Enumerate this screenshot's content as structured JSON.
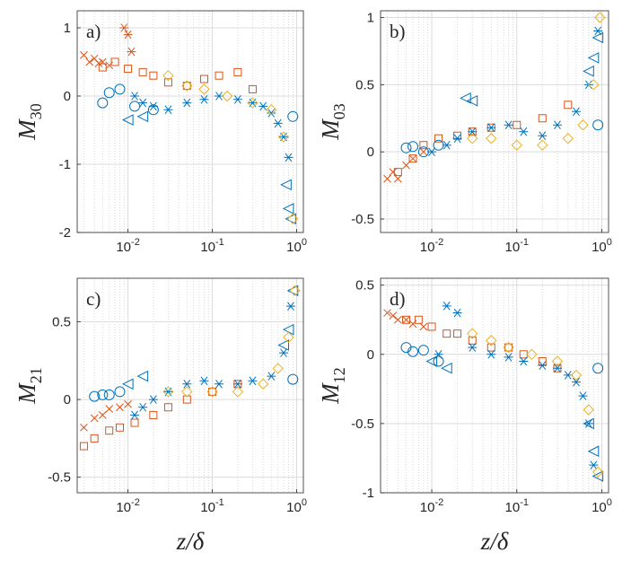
{
  "figure": {
    "xlabel": "z/δ",
    "colors": {
      "blue": "#0072BD",
      "orange": "#D95319",
      "yellow": "#EDB120"
    },
    "x_tick_labels": [
      "10-2",
      "10-1",
      "100"
    ]
  },
  "chart_data": [
    {
      "type": "scatter",
      "panel": "a)",
      "ylabel": "M30",
      "xscale": "log",
      "xlim": [
        0.0025,
        1.2
      ],
      "ylim": [
        -2,
        1.25
      ],
      "yticks": [
        -2,
        -1,
        0,
        1
      ],
      "ytick_labels": [
        "-2",
        "-1",
        "0",
        "1"
      ],
      "grid": "on",
      "series": [
        {
          "name": "orange-cross",
          "marker": "x",
          "color": "#D95319",
          "x": [
            0.003,
            0.0035,
            0.004,
            0.0045,
            0.005,
            0.006
          ],
          "y": [
            0.6,
            0.5,
            0.55,
            0.48,
            0.5,
            0.45
          ]
        },
        {
          "name": "orange-square",
          "marker": "square",
          "color": "#D95319",
          "x": [
            0.005,
            0.007,
            0.01,
            0.015,
            0.02,
            0.03,
            0.05,
            0.08,
            0.12,
            0.2,
            0.3
          ],
          "y": [
            0.42,
            0.5,
            0.4,
            0.35,
            0.3,
            0.2,
            0.15,
            0.25,
            0.3,
            0.35,
            0.1
          ]
        },
        {
          "name": "orange-star",
          "marker": "asterisk",
          "color": "#D95319",
          "x": [
            0.009,
            0.01,
            0.011
          ],
          "y": [
            1.0,
            0.9,
            0.65
          ]
        },
        {
          "name": "blue-circle",
          "marker": "circle",
          "color": "#0072BD",
          "x": [
            0.005,
            0.006,
            0.008,
            0.012,
            0.02,
            0.9
          ],
          "y": [
            -0.1,
            0.05,
            0.1,
            -0.15,
            -0.2,
            -0.3
          ]
        },
        {
          "name": "blue-star",
          "marker": "asterisk",
          "color": "#0072BD",
          "x": [
            0.012,
            0.015,
            0.02,
            0.03,
            0.05,
            0.08,
            0.12,
            0.2,
            0.3,
            0.4,
            0.5,
            0.6,
            0.7,
            0.8
          ],
          "y": [
            0.0,
            -0.1,
            -0.15,
            -0.2,
            -0.1,
            -0.05,
            0.0,
            -0.05,
            -0.1,
            -0.15,
            -0.25,
            -0.4,
            -0.6,
            -0.9
          ]
        },
        {
          "name": "blue-left",
          "marker": "triangle-left",
          "color": "#0072BD",
          "x": [
            0.01,
            0.015,
            0.75,
            0.8,
            0.85
          ],
          "y": [
            -0.35,
            -0.3,
            -1.3,
            -1.65,
            -1.8
          ]
        },
        {
          "name": "yellow-diamond",
          "marker": "diamond",
          "color": "#EDB120",
          "x": [
            0.03,
            0.05,
            0.08,
            0.15,
            0.3,
            0.5,
            0.7,
            0.9
          ],
          "y": [
            0.3,
            0.15,
            0.1,
            0.0,
            -0.1,
            -0.2,
            -0.6,
            -1.8
          ]
        }
      ]
    },
    {
      "type": "scatter",
      "panel": "b)",
      "ylabel": "M03",
      "xscale": "log",
      "xlim": [
        0.0025,
        1.2
      ],
      "ylim": [
        -0.6,
        1.05
      ],
      "yticks": [
        -0.5,
        0,
        0.5,
        1
      ],
      "ytick_labels": [
        "-0.5",
        "0",
        "0.5",
        "1"
      ],
      "grid": "on",
      "series": [
        {
          "name": "orange-cross",
          "marker": "x",
          "color": "#D95319",
          "x": [
            0.003,
            0.0035,
            0.004,
            0.005,
            0.006,
            0.008
          ],
          "y": [
            -0.2,
            -0.15,
            -0.2,
            -0.1,
            -0.05,
            0.0
          ]
        },
        {
          "name": "orange-square",
          "marker": "square",
          "color": "#D95319",
          "x": [
            0.004,
            0.006,
            0.008,
            0.012,
            0.02,
            0.03,
            0.05,
            0.1,
            0.2,
            0.4
          ],
          "y": [
            -0.15,
            -0.05,
            0.05,
            0.1,
            0.12,
            0.15,
            0.18,
            0.2,
            0.25,
            0.35
          ]
        },
        {
          "name": "blue-circle",
          "marker": "circle",
          "color": "#0072BD",
          "x": [
            0.005,
            0.006,
            0.008,
            0.012,
            0.9
          ],
          "y": [
            0.03,
            0.04,
            0.0,
            0.05,
            0.2
          ]
        },
        {
          "name": "blue-star",
          "marker": "asterisk",
          "color": "#0072BD",
          "x": [
            0.01,
            0.015,
            0.02,
            0.03,
            0.05,
            0.08,
            0.12,
            0.2,
            0.3,
            0.5,
            0.7,
            0.9
          ],
          "y": [
            0.0,
            0.05,
            0.1,
            0.15,
            0.18,
            0.2,
            0.15,
            0.12,
            0.2,
            0.3,
            0.5,
            0.9
          ]
        },
        {
          "name": "blue-left",
          "marker": "triangle-left",
          "color": "#0072BD",
          "x": [
            0.025,
            0.03,
            0.7,
            0.8,
            0.9
          ],
          "y": [
            0.4,
            0.38,
            0.6,
            0.7,
            0.85
          ]
        },
        {
          "name": "yellow-diamond",
          "marker": "diamond",
          "color": "#EDB120",
          "x": [
            0.03,
            0.05,
            0.1,
            0.2,
            0.4,
            0.6,
            0.8,
            0.95
          ],
          "y": [
            0.1,
            0.1,
            0.05,
            0.05,
            0.1,
            0.2,
            0.5,
            1.0
          ]
        }
      ]
    },
    {
      "type": "scatter",
      "panel": "c)",
      "ylabel": "M21",
      "xscale": "log",
      "xlim": [
        0.0025,
        1.2
      ],
      "ylim": [
        -0.6,
        0.78
      ],
      "yticks": [
        -0.5,
        0,
        0.5
      ],
      "ytick_labels": [
        "-0.5",
        "0",
        "0.5"
      ],
      "grid": "on",
      "series": [
        {
          "name": "orange-cross",
          "marker": "x",
          "color": "#D95319",
          "x": [
            0.003,
            0.004,
            0.005,
            0.006,
            0.008,
            0.01
          ],
          "y": [
            -0.18,
            -0.12,
            -0.1,
            -0.06,
            -0.05,
            -0.03
          ]
        },
        {
          "name": "orange-square",
          "marker": "square",
          "color": "#D95319",
          "x": [
            0.003,
            0.004,
            0.006,
            0.008,
            0.012,
            0.02,
            0.03,
            0.05,
            0.1,
            0.2
          ],
          "y": [
            -0.3,
            -0.25,
            -0.2,
            -0.18,
            -0.15,
            -0.1,
            -0.05,
            0.0,
            0.05,
            0.1
          ]
        },
        {
          "name": "blue-circle",
          "marker": "circle",
          "color": "#0072BD",
          "x": [
            0.004,
            0.005,
            0.006,
            0.008,
            0.9
          ],
          "y": [
            0.02,
            0.03,
            0.03,
            0.05,
            0.13
          ]
        },
        {
          "name": "blue-star",
          "marker": "asterisk",
          "color": "#0072BD",
          "x": [
            0.012,
            0.015,
            0.02,
            0.03,
            0.05,
            0.08,
            0.12,
            0.2,
            0.3,
            0.5,
            0.7,
            0.85
          ],
          "y": [
            -0.1,
            -0.05,
            0.0,
            0.05,
            0.1,
            0.12,
            0.1,
            0.1,
            0.12,
            0.15,
            0.3,
            0.6
          ]
        },
        {
          "name": "blue-left",
          "marker": "triangle-left",
          "color": "#0072BD",
          "x": [
            0.01,
            0.015,
            0.7,
            0.8,
            0.9
          ],
          "y": [
            0.1,
            0.15,
            0.35,
            0.45,
            0.7
          ]
        },
        {
          "name": "yellow-diamond",
          "marker": "diamond",
          "color": "#EDB120",
          "x": [
            0.03,
            0.05,
            0.1,
            0.2,
            0.4,
            0.6,
            0.8,
            0.95
          ],
          "y": [
            0.05,
            0.05,
            0.05,
            0.05,
            0.1,
            0.2,
            0.4,
            0.7
          ]
        }
      ]
    },
    {
      "type": "scatter",
      "panel": "d)",
      "ylabel": "M12",
      "xscale": "log",
      "xlim": [
        0.0025,
        1.2
      ],
      "ylim": [
        -1.0,
        0.55
      ],
      "yticks": [
        -1,
        -0.5,
        0,
        0.5
      ],
      "ytick_labels": [
        "-1",
        "-0.5",
        "0",
        "0.5"
      ],
      "grid": "on",
      "series": [
        {
          "name": "orange-cross",
          "marker": "x",
          "color": "#D95319",
          "x": [
            0.003,
            0.0035,
            0.004,
            0.005,
            0.006,
            0.008
          ],
          "y": [
            0.3,
            0.28,
            0.25,
            0.25,
            0.22,
            0.2
          ]
        },
        {
          "name": "orange-square",
          "marker": "square",
          "color": "#D95319",
          "x": [
            0.005,
            0.007,
            0.01,
            0.015,
            0.02,
            0.03,
            0.05,
            0.08,
            0.12,
            0.2,
            0.3
          ],
          "y": [
            0.25,
            0.25,
            0.2,
            0.15,
            0.15,
            0.1,
            0.05,
            0.05,
            0.0,
            -0.05,
            -0.1
          ]
        },
        {
          "name": "blue-circle",
          "marker": "circle",
          "color": "#0072BD",
          "x": [
            0.005,
            0.006,
            0.008,
            0.012,
            0.9
          ],
          "y": [
            0.05,
            0.02,
            0.03,
            -0.05,
            -0.1
          ]
        },
        {
          "name": "blue-star",
          "marker": "asterisk",
          "color": "#0072BD",
          "x": [
            0.012,
            0.015,
            0.02,
            0.03,
            0.05,
            0.08,
            0.12,
            0.2,
            0.3,
            0.4,
            0.5,
            0.6,
            0.7,
            0.8
          ],
          "y": [
            0.0,
            0.35,
            0.3,
            0.05,
            0.0,
            -0.02,
            -0.05,
            -0.08,
            -0.1,
            -0.15,
            -0.2,
            -0.3,
            -0.5,
            -0.8
          ]
        },
        {
          "name": "blue-left",
          "marker": "triangle-left",
          "color": "#0072BD",
          "x": [
            0.01,
            0.015,
            0.7,
            0.8,
            0.9
          ],
          "y": [
            -0.05,
            -0.1,
            -0.5,
            -0.7,
            -0.88
          ]
        },
        {
          "name": "yellow-diamond",
          "marker": "diamond",
          "color": "#EDB120",
          "x": [
            0.03,
            0.05,
            0.08,
            0.15,
            0.3,
            0.5,
            0.7,
            0.9
          ],
          "y": [
            0.15,
            0.1,
            0.05,
            0.0,
            -0.05,
            -0.15,
            -0.4,
            -0.85
          ]
        }
      ]
    }
  ]
}
